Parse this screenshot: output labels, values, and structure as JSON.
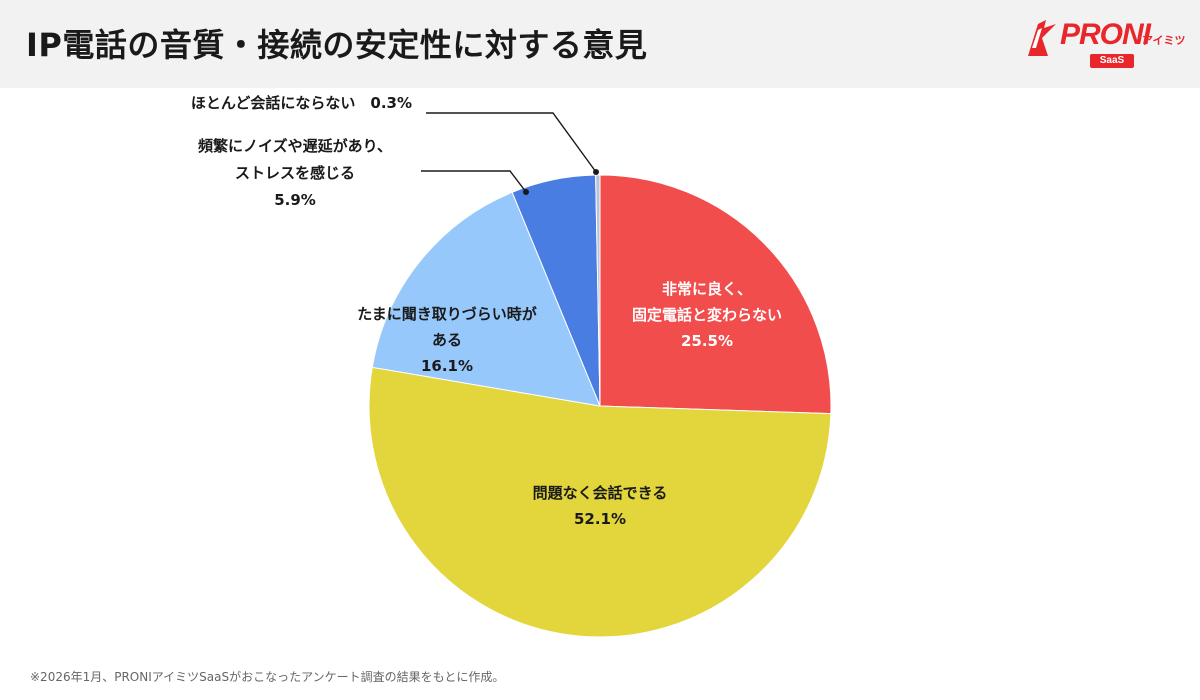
{
  "header": {
    "title": "IP電話の音質・接続の安定性に対する意見",
    "logo": {
      "brand": "PRONI",
      "sub": "アイミツ",
      "badge": "SaaS"
    }
  },
  "footnote": "※2026年1月、PRONIアイミツSaaSがおこなったアンケート調査の結果をもとに作成。",
  "colors": {
    "red": "#f24d4d",
    "yellow": "#e3d63c",
    "light_blue": "#96c8fb",
    "blue": "#4a7de2",
    "gray": "#b7c3d6"
  },
  "chart_data": {
    "type": "pie",
    "unit": "%",
    "start_angle_deg": 0,
    "direction": "clockwise",
    "slices": [
      {
        "label_lines": [
          "非常に良く、",
          "固定電話と変わらない"
        ],
        "value": 25.5,
        "value_label": "25.5%",
        "color": "#f24d4d",
        "label_placement": "inside",
        "text_color": "#ffffff"
      },
      {
        "label_lines": [
          "問題なく会話できる"
        ],
        "value": 52.1,
        "value_label": "52.1%",
        "color": "#e3d63c",
        "label_placement": "inside",
        "text_color": "#1a1a1a"
      },
      {
        "label_lines": [
          "たまに聞き取りづらい時が",
          "ある"
        ],
        "value": 16.1,
        "value_label": "16.1%",
        "color": "#96c8fb",
        "label_placement": "inside",
        "text_color": "#1a1a1a"
      },
      {
        "label_lines": [
          "頻繁にノイズや遅延があり、",
          "ストレスを感じる"
        ],
        "value": 5.9,
        "value_label": "5.9%",
        "color": "#4a7de2",
        "label_placement": "callout",
        "text_color": "#1a1a1a"
      },
      {
        "label_lines": [
          "ほとんど会話にならない"
        ],
        "value": 0.3,
        "value_label": "0.3%",
        "color": "#b7c3d6",
        "label_placement": "callout",
        "text_color": "#1a1a1a"
      }
    ]
  }
}
